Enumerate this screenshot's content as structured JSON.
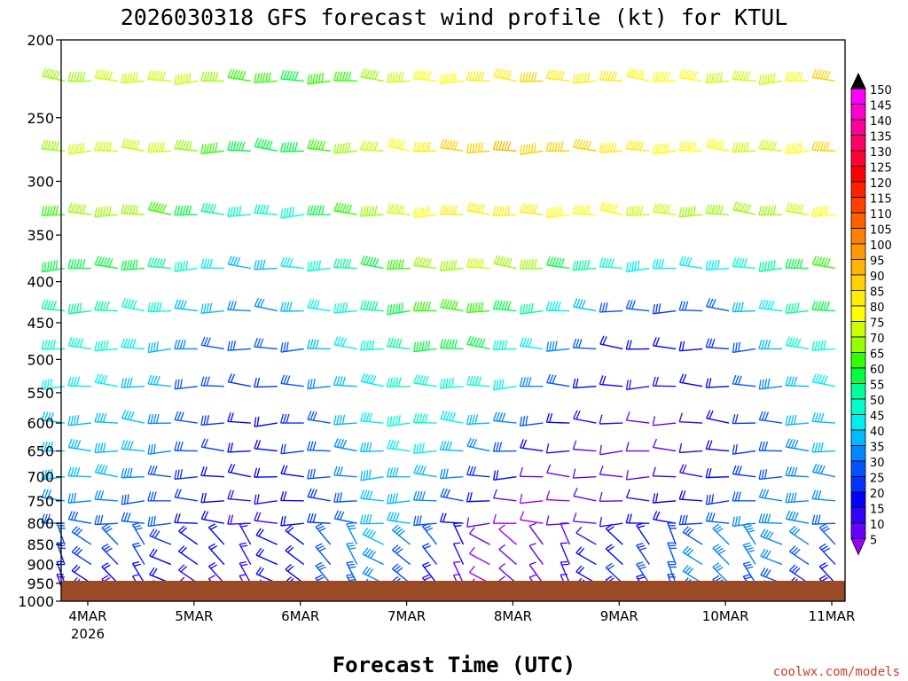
{
  "chart_data": {
    "type": "wind-barb-time-height",
    "title": "2026030318 GFS forecast wind profile (kt) for KTUL",
    "xlabel": "Forecast Time (UTC)",
    "ylabel": "",
    "y_axis": {
      "range": [
        200,
        1000
      ],
      "scale": "log-pressure",
      "ticks": [
        "200",
        "250",
        "300",
        "350",
        "400",
        "450",
        "500",
        "550",
        "600",
        "650",
        "700",
        "750",
        "800",
        "850",
        "900",
        "950",
        "1000"
      ]
    },
    "x_axis": {
      "range_hours": [
        0,
        177
      ],
      "ticks": [
        {
          "label": "4MAR",
          "sub": "2026",
          "hour": 6
        },
        {
          "label": "5MAR",
          "sub": "",
          "hour": 30
        },
        {
          "label": "6MAR",
          "sub": "",
          "hour": 54
        },
        {
          "label": "7MAR",
          "sub": "",
          "hour": 78
        },
        {
          "label": "8MAR",
          "sub": "",
          "hour": 102
        },
        {
          "label": "9MAR",
          "sub": "",
          "hour": 126
        },
        {
          "label": "10MAR",
          "sub": "",
          "hour": 150
        },
        {
          "label": "11MAR",
          "sub": "",
          "hour": 174
        }
      ]
    },
    "colorbar": {
      "unit": "kt",
      "labels": [
        "150",
        "145",
        "140",
        "135",
        "130",
        "125",
        "120",
        "115",
        "110",
        "105",
        "100",
        "95",
        "90",
        "85",
        "80",
        "75",
        "70",
        "65",
        "60",
        "55",
        "50",
        "45",
        "40",
        "35",
        "30",
        "25",
        "20",
        "15",
        "10",
        "5"
      ],
      "colors": [
        "#ff00ff",
        "#ff00cc",
        "#ff0099",
        "#ff0066",
        "#ff0033",
        "#ff0000",
        "#ff2000",
        "#ff4000",
        "#ff6000",
        "#ff8000",
        "#ff9a00",
        "#ffb400",
        "#ffd200",
        "#ffee00",
        "#ffff00",
        "#ccff00",
        "#99ff00",
        "#33ff00",
        "#00ff44",
        "#00ff99",
        "#00ffcc",
        "#00eeee",
        "#00bbff",
        "#0088ff",
        "#0055ff",
        "#0033ff",
        "#0000ff",
        "#3300ff",
        "#6600ff",
        "#9900ff"
      ]
    },
    "time_step_hours": 6,
    "levels_hpa": [
      225,
      275,
      330,
      385,
      435,
      485,
      540,
      600,
      650,
      700,
      750,
      800,
      850,
      900,
      950,
      985
    ],
    "speed_kt": [
      [
        70,
        72,
        74,
        76,
        76,
        74,
        70,
        66,
        64,
        62,
        64,
        66,
        72,
        76,
        78,
        80,
        84,
        86,
        88,
        86,
        86,
        84,
        82,
        80,
        78,
        76,
        74,
        76,
        82,
        90,
        94,
        92,
        86,
        72,
        64
      ],
      [
        72,
        74,
        76,
        76,
        74,
        70,
        64,
        60,
        58,
        60,
        64,
        68,
        74,
        80,
        84,
        88,
        92,
        94,
        92,
        90,
        88,
        86,
        84,
        82,
        80,
        78,
        76,
        76,
        82,
        88,
        88,
        84,
        80,
        72,
        64
      ],
      [
        66,
        68,
        70,
        70,
        66,
        60,
        54,
        48,
        48,
        52,
        58,
        64,
        70,
        76,
        80,
        84,
        86,
        86,
        84,
        82,
        80,
        78,
        76,
        74,
        72,
        70,
        70,
        72,
        76,
        80,
        82,
        80,
        76,
        70,
        60
      ],
      [
        60,
        62,
        62,
        60,
        56,
        50,
        44,
        40,
        40,
        44,
        50,
        56,
        62,
        66,
        70,
        72,
        74,
        72,
        68,
        62,
        56,
        50,
        46,
        44,
        44,
        46,
        50,
        56,
        62,
        66,
        68,
        66,
        62,
        56,
        48
      ],
      [
        54,
        54,
        54,
        52,
        48,
        42,
        38,
        34,
        34,
        38,
        44,
        50,
        56,
        60,
        64,
        66,
        66,
        62,
        54,
        46,
        38,
        32,
        28,
        26,
        28,
        32,
        38,
        46,
        54,
        58,
        60,
        58,
        54,
        48,
        40
      ],
      [
        48,
        48,
        48,
        46,
        42,
        36,
        32,
        28,
        28,
        32,
        38,
        44,
        50,
        54,
        58,
        60,
        58,
        52,
        44,
        36,
        28,
        22,
        20,
        20,
        22,
        26,
        32,
        40,
        48,
        52,
        54,
        50,
        46,
        40,
        32
      ],
      [
        44,
        44,
        44,
        42,
        38,
        32,
        28,
        24,
        24,
        28,
        34,
        40,
        46,
        50,
        52,
        52,
        50,
        44,
        36,
        28,
        22,
        18,
        16,
        16,
        18,
        22,
        28,
        36,
        42,
        46,
        46,
        42,
        38,
        30,
        22
      ],
      [
        42,
        42,
        42,
        40,
        36,
        30,
        26,
        22,
        22,
        26,
        32,
        38,
        44,
        48,
        48,
        46,
        42,
        36,
        28,
        22,
        16,
        14,
        12,
        12,
        14,
        18,
        24,
        32,
        38,
        42,
        40,
        36,
        30,
        24,
        16
      ],
      [
        40,
        40,
        40,
        38,
        34,
        28,
        24,
        20,
        20,
        24,
        30,
        36,
        42,
        44,
        44,
        40,
        34,
        28,
        20,
        14,
        10,
        10,
        10,
        12,
        14,
        18,
        24,
        30,
        36,
        38,
        36,
        30,
        24,
        18,
        12
      ],
      [
        38,
        38,
        38,
        36,
        32,
        26,
        22,
        18,
        18,
        22,
        28,
        34,
        40,
        42,
        40,
        34,
        26,
        18,
        12,
        8,
        8,
        10,
        12,
        14,
        16,
        20,
        26,
        32,
        36,
        36,
        32,
        26,
        20,
        14,
        10
      ],
      [
        34,
        34,
        34,
        32,
        30,
        24,
        20,
        16,
        16,
        20,
        26,
        32,
        38,
        40,
        36,
        28,
        18,
        10,
        6,
        6,
        8,
        10,
        14,
        18,
        22,
        26,
        30,
        34,
        36,
        34,
        28,
        22,
        16,
        12,
        8
      ],
      [
        32,
        32,
        32,
        30,
        28,
        22,
        18,
        16,
        16,
        20,
        26,
        32,
        38,
        38,
        32,
        22,
        12,
        6,
        6,
        8,
        10,
        14,
        18,
        22,
        26,
        30,
        34,
        36,
        36,
        32,
        26,
        20,
        14,
        10,
        8
      ],
      [
        30,
        30,
        30,
        28,
        26,
        22,
        18,
        16,
        18,
        22,
        28,
        34,
        38,
        36,
        28,
        18,
        8,
        6,
        8,
        10,
        14,
        18,
        22,
        26,
        30,
        34,
        36,
        36,
        34,
        30,
        24,
        18,
        12,
        10,
        8
      ],
      [
        26,
        26,
        26,
        24,
        22,
        20,
        18,
        16,
        18,
        22,
        28,
        34,
        36,
        32,
        24,
        14,
        6,
        8,
        10,
        14,
        18,
        22,
        26,
        30,
        34,
        36,
        36,
        34,
        30,
        26,
        20,
        16,
        12,
        10,
        8
      ],
      [
        22,
        22,
        22,
        20,
        18,
        16,
        16,
        16,
        18,
        22,
        28,
        32,
        34,
        30,
        20,
        10,
        6,
        8,
        12,
        16,
        20,
        24,
        28,
        32,
        34,
        34,
        32,
        30,
        26,
        22,
        18,
        14,
        10,
        8,
        8
      ],
      [
        16,
        16,
        16,
        14,
        14,
        14,
        14,
        14,
        16,
        20,
        24,
        28,
        28,
        24,
        16,
        8,
        6,
        8,
        10,
        14,
        18,
        20,
        22,
        24,
        26,
        26,
        24,
        22,
        20,
        18,
        14,
        12,
        10,
        8,
        8
      ]
    ]
  },
  "credit": "coolwx.com/models"
}
